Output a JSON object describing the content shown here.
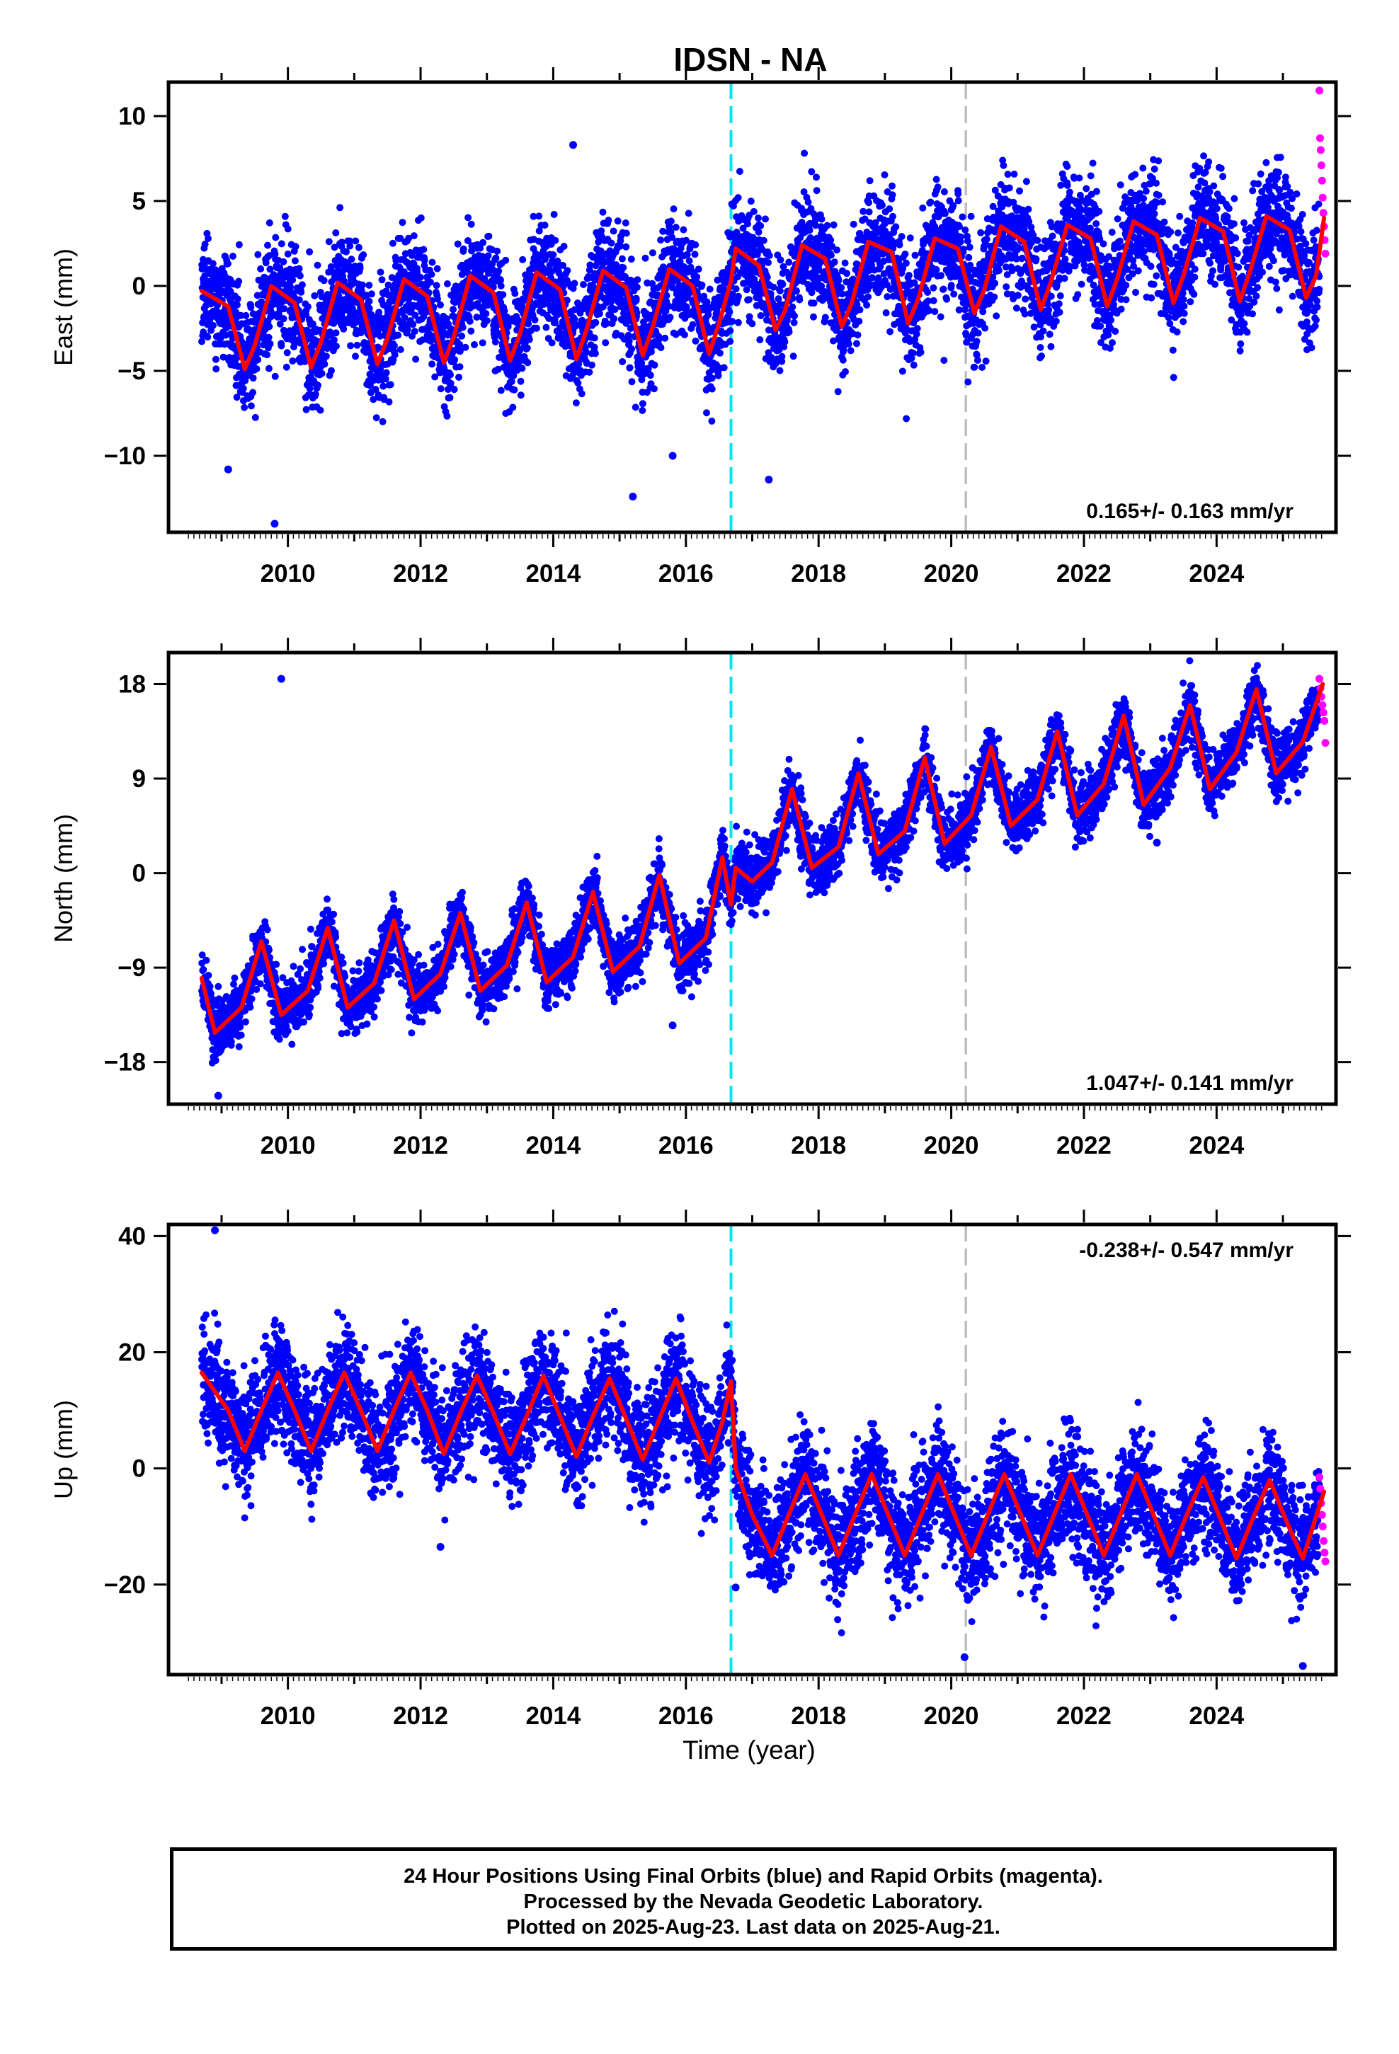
{
  "title": "IDSN - NA",
  "xlabel": "Time (year)",
  "x_ticks": [
    "2010",
    "2012",
    "2014",
    "2016",
    "2018",
    "2020",
    "2022",
    "2024"
  ],
  "colors": {
    "final_orbits": "#0000ff",
    "rapid_orbits": "#ff00ff",
    "model": "#ff0000",
    "event_line_1": "#00e5ee",
    "event_line_2": "#bebebe"
  },
  "event_lines": [
    {
      "year": 2016.68,
      "color": "#00e5ee"
    },
    {
      "year": 2020.22,
      "color": "#bebebe"
    }
  ],
  "caption": [
    "24 Hour Positions Using Final Orbits (blue) and Rapid Orbits (magenta).",
    "Processed by the Nevada Geodetic Laboratory.",
    "Plotted on 2025-Aug-23. Last data on 2025-Aug-21."
  ],
  "chart_data": [
    {
      "type": "scatter",
      "ylabel": "East (mm)",
      "xlim": [
        2008.2,
        2025.8
      ],
      "ylim": [
        -14.5,
        12
      ],
      "y_ticks": [
        "10",
        "5",
        "0",
        "−5",
        "−10"
      ],
      "y_tick_values": [
        10,
        5,
        0,
        -5,
        -10
      ],
      "velocity_label": "0.165+/- 0.163 mm/yr",
      "velocity_label_position": "bottom-right",
      "model": {
        "x": [
          2008.7,
          2009.1,
          2009.35,
          2009.5,
          2009.75,
          2010.1,
          2010.35,
          2010.5,
          2010.75,
          2011.1,
          2011.35,
          2011.5,
          2011.75,
          2012.1,
          2012.35,
          2012.5,
          2012.75,
          2013.1,
          2013.35,
          2013.5,
          2013.75,
          2014.1,
          2014.35,
          2014.5,
          2014.75,
          2015.1,
          2015.35,
          2015.5,
          2015.75,
          2016.1,
          2016.35,
          2016.5,
          2016.68,
          2016.75,
          2017.1,
          2017.35,
          2017.5,
          2017.75,
          2018.1,
          2018.35,
          2018.5,
          2018.75,
          2019.1,
          2019.35,
          2019.5,
          2019.75,
          2020.1,
          2020.35,
          2020.5,
          2020.75,
          2021.1,
          2021.35,
          2021.5,
          2021.75,
          2022.1,
          2022.35,
          2022.5,
          2022.75,
          2023.1,
          2023.35,
          2023.5,
          2023.75,
          2024.1,
          2024.35,
          2024.5,
          2024.75,
          2025.1,
          2025.35,
          2025.5,
          2025.62
        ],
        "y": [
          -0.3,
          -1.2,
          -4.9,
          -3.5,
          0.0,
          -1.0,
          -4.8,
          -3.3,
          0.2,
          -0.8,
          -4.6,
          -3.1,
          0.4,
          -0.6,
          -4.5,
          -3.0,
          0.6,
          -0.4,
          -4.4,
          -2.8,
          0.8,
          -0.2,
          -4.3,
          -2.6,
          0.9,
          -0.1,
          -4.1,
          -2.4,
          1.0,
          0.0,
          -4.0,
          -2.2,
          0.3,
          2.2,
          1.2,
          -2.6,
          -1.4,
          2.4,
          1.6,
          -2.4,
          -1.0,
          2.6,
          2.0,
          -2.2,
          -0.8,
          2.8,
          2.2,
          -1.6,
          -0.2,
          3.5,
          2.6,
          -1.4,
          0.2,
          3.6,
          2.8,
          -1.2,
          0.4,
          3.8,
          3.0,
          -1.0,
          0.6,
          4.0,
          3.2,
          -0.9,
          0.8,
          4.1,
          3.3,
          -0.7,
          0.6,
          4.0
        ]
      },
      "series": [
        {
          "name": "Final Orbits",
          "color": "#0000ff",
          "x_range": [
            2008.7,
            2025.55
          ],
          "scatter_sd": 1.6
        },
        {
          "name": "Rapid Orbits",
          "color": "#ff00ff",
          "x_range": [
            2025.55,
            2025.64
          ],
          "y": [
            11.5,
            8.7,
            8.0,
            7.1,
            6.2,
            5.2,
            4.3,
            3.5,
            2.7,
            1.9
          ]
        }
      ],
      "outliers": [
        {
          "x": 2009.8,
          "y": -14.0
        },
        {
          "x": 2014.3,
          "y": 8.3
        },
        {
          "x": 2015.2,
          "y": -12.4
        },
        {
          "x": 2017.25,
          "y": -11.4
        },
        {
          "x": 2015.8,
          "y": -10.0
        },
        {
          "x": 2009.1,
          "y": -10.8
        }
      ]
    },
    {
      "type": "scatter",
      "ylabel": "North (mm)",
      "xlim": [
        2008.2,
        2025.8
      ],
      "ylim": [
        -22,
        21
      ],
      "y_ticks": [
        "18",
        "9",
        "0",
        "−9",
        "−18"
      ],
      "y_tick_values": [
        18,
        9,
        0,
        -9,
        -18
      ],
      "velocity_label": "1.047+/- 0.141 mm/yr",
      "velocity_label_position": "bottom-right",
      "model": {
        "x": [
          2008.7,
          2008.9,
          2009.3,
          2009.6,
          2009.9,
          2010.3,
          2010.6,
          2010.9,
          2011.3,
          2011.6,
          2011.9,
          2012.3,
          2012.6,
          2012.9,
          2013.3,
          2013.6,
          2013.9,
          2014.3,
          2014.6,
          2014.9,
          2015.3,
          2015.6,
          2015.9,
          2016.3,
          2016.55,
          2016.68,
          2016.75,
          2017.0,
          2017.3,
          2017.6,
          2017.9,
          2018.3,
          2018.6,
          2018.9,
          2019.3,
          2019.6,
          2019.9,
          2020.3,
          2020.6,
          2020.9,
          2021.3,
          2021.6,
          2021.9,
          2022.3,
          2022.6,
          2022.9,
          2023.3,
          2023.6,
          2023.9,
          2024.3,
          2024.6,
          2024.9,
          2025.3,
          2025.6
        ],
        "y": [
          -10.0,
          -15.2,
          -12.8,
          -6.5,
          -13.5,
          -11.2,
          -5.2,
          -12.8,
          -10.5,
          -4.5,
          -12.0,
          -9.6,
          -3.8,
          -11.2,
          -8.8,
          -2.8,
          -10.4,
          -8.0,
          -1.8,
          -9.4,
          -7.0,
          -0.2,
          -8.6,
          -6.2,
          1.5,
          -3.0,
          0.5,
          -0.8,
          1.0,
          8.0,
          0.5,
          2.5,
          9.5,
          1.8,
          4.0,
          11.0,
          2.8,
          5.5,
          12.0,
          4.5,
          7.0,
          13.5,
          5.5,
          8.5,
          15.0,
          6.5,
          10.0,
          16.0,
          8.0,
          11.5,
          17.5,
          9.5,
          12.5,
          18.0
        ]
      },
      "series": [
        {
          "name": "Final Orbits",
          "color": "#0000ff",
          "x_range": [
            2008.7,
            2025.55
          ],
          "scatter_sd": 1.4
        },
        {
          "name": "Rapid Orbits",
          "color": "#ff00ff",
          "x_range": [
            2025.55,
            2025.64
          ],
          "y": [
            18.5,
            17.6,
            16.8,
            16.0,
            15.3,
            14.5,
            12.4
          ]
        }
      ],
      "outliers": [
        {
          "x": 2009.9,
          "y": 18.5
        },
        {
          "x": 2008.95,
          "y": -21.2
        },
        {
          "x": 2015.8,
          "y": -14.5
        },
        {
          "x": 2023.1,
          "y": 2.9
        }
      ]
    },
    {
      "type": "scatter",
      "ylabel": "Up (mm)",
      "xlim": [
        2008.2,
        2025.8
      ],
      "ylim": [
        -35.5,
        42
      ],
      "y_ticks": [
        "40",
        "20",
        "0",
        "−20"
      ],
      "y_tick_values": [
        40,
        20,
        0,
        -20
      ],
      "velocity_label": "-0.238+/- 0.547 mm/yr",
      "velocity_label_position": "top-right",
      "model": {
        "x": [
          2008.7,
          2009.1,
          2009.35,
          2009.6,
          2009.85,
          2010.1,
          2010.35,
          2010.6,
          2010.85,
          2011.1,
          2011.35,
          2011.6,
          2011.85,
          2012.1,
          2012.35,
          2012.6,
          2012.85,
          2013.1,
          2013.35,
          2013.6,
          2013.85,
          2014.1,
          2014.35,
          2014.6,
          2014.85,
          2015.1,
          2015.35,
          2015.6,
          2015.85,
          2016.1,
          2016.35,
          2016.55,
          2016.68,
          2016.75,
          2017.0,
          2017.3,
          2017.55,
          2017.8,
          2018.05,
          2018.3,
          2018.55,
          2018.8,
          2019.05,
          2019.3,
          2019.55,
          2019.8,
          2020.05,
          2020.3,
          2020.55,
          2020.8,
          2021.05,
          2021.3,
          2021.55,
          2021.8,
          2022.05,
          2022.3,
          2022.55,
          2022.8,
          2023.05,
          2023.3,
          2023.55,
          2023.8,
          2024.05,
          2024.3,
          2024.55,
          2024.8,
          2025.05,
          2025.3,
          2025.62
        ],
        "y": [
          16.5,
          10.0,
          3.0,
          10.0,
          16.5,
          10.0,
          3.0,
          10.0,
          16.5,
          10.0,
          3.0,
          10.0,
          16.5,
          10.0,
          2.5,
          9.5,
          16.0,
          9.5,
          2.5,
          9.0,
          16.0,
          9.0,
          2.0,
          9.0,
          15.5,
          8.5,
          1.5,
          8.5,
          15.5,
          8.0,
          1.0,
          8.0,
          15.0,
          0.0,
          -8.0,
          -15.0,
          -8.0,
          -1.0,
          -8.0,
          -15.0,
          -8.0,
          -1.0,
          -8.0,
          -15.0,
          -8.0,
          -1.0,
          -8.0,
          -15.0,
          -8.0,
          -1.0,
          -8.0,
          -15.0,
          -8.0,
          -1.0,
          -8.0,
          -15.0,
          -8.0,
          -1.0,
          -8.0,
          -15.0,
          -8.0,
          -1.5,
          -8.5,
          -15.5,
          -8.5,
          -2.0,
          -9.0,
          -15.5,
          -4.0
        ]
      },
      "series": [
        {
          "name": "Final Orbits",
          "color": "#0000ff",
          "x_range": [
            2008.7,
            2025.55
          ],
          "scatter_sd": 4.8
        },
        {
          "name": "Rapid Orbits",
          "color": "#ff00ff",
          "x_range": [
            2025.55,
            2025.64
          ],
          "y": [
            -1.5,
            -3.5,
            -6.0,
            -8.0,
            -10.0,
            -12.5,
            -14.5,
            -16.0
          ]
        }
      ],
      "outliers": [
        {
          "x": 2008.9,
          "y": 41.0
        },
        {
          "x": 2025.3,
          "y": -34.0
        },
        {
          "x": 2020.2,
          "y": -32.5
        },
        {
          "x": 2012.3,
          "y": -13.5
        },
        {
          "x": 2016.75,
          "y": -20.5
        }
      ]
    }
  ]
}
